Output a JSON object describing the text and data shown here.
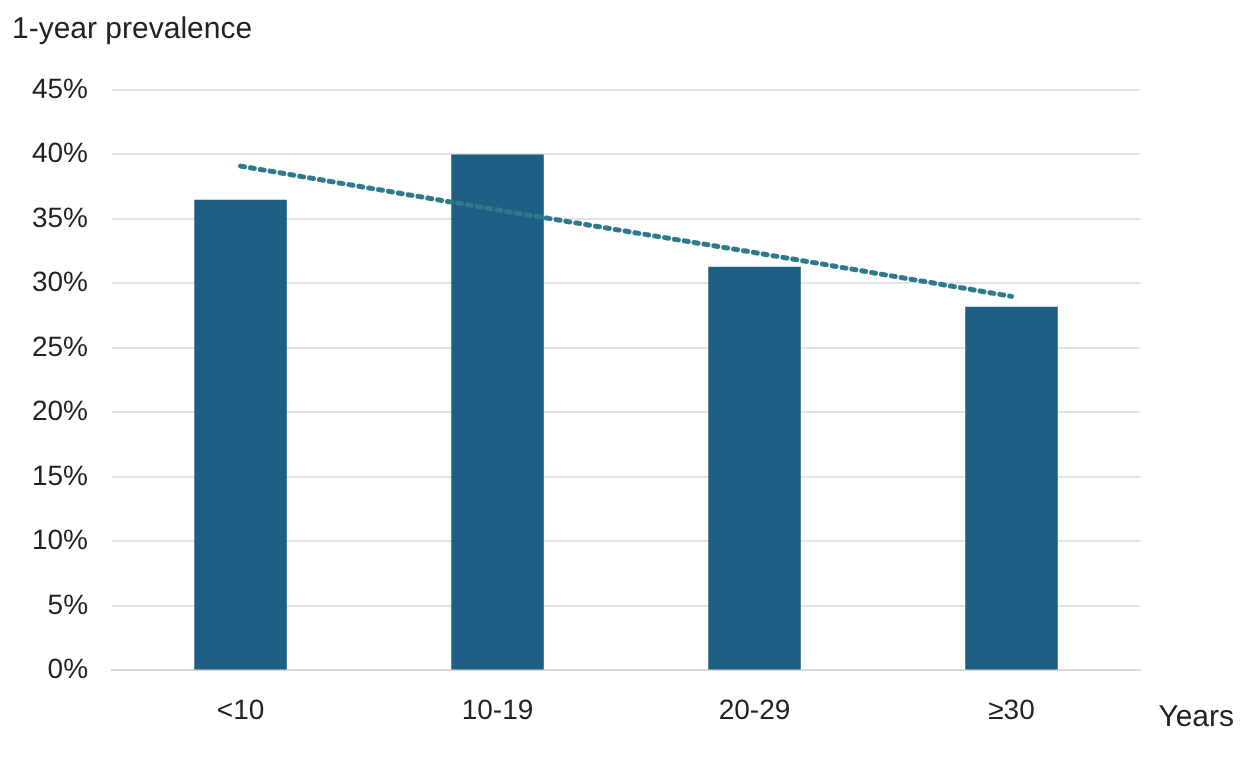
{
  "chart_data": {
    "type": "bar",
    "ylabel": "1-year prevalence",
    "xlabel": "Years",
    "categories": [
      "<10",
      "10-19",
      "20-29",
      "≥30"
    ],
    "series": [
      {
        "color": "#1d5f82",
        "values": [
          36.5,
          40,
          31.3,
          28.2
        ]
      },
      {
        "type": "line",
        "color": "#2e7a8c",
        "line_style": "dotted",
        "marker": "none",
        "values": [
          39.1,
          35.7,
          32.4,
          29.0
        ]
      }
    ],
    "ylim": [
      0,
      45
    ],
    "yticks": [
      {
        "value": 0,
        "label": "0%"
      },
      {
        "value": 5,
        "label": "5%"
      },
      {
        "value": 10,
        "label": "10%"
      },
      {
        "value": 15,
        "label": "15%"
      },
      {
        "value": 20,
        "label": "20%"
      },
      {
        "value": 25,
        "label": "25%"
      },
      {
        "value": 30,
        "label": "30%"
      },
      {
        "value": 35,
        "label": "35%"
      },
      {
        "value": 40,
        "label": "40%"
      },
      {
        "value": 45,
        "label": "45%"
      }
    ],
    "grid": "y",
    "legend": false
  }
}
